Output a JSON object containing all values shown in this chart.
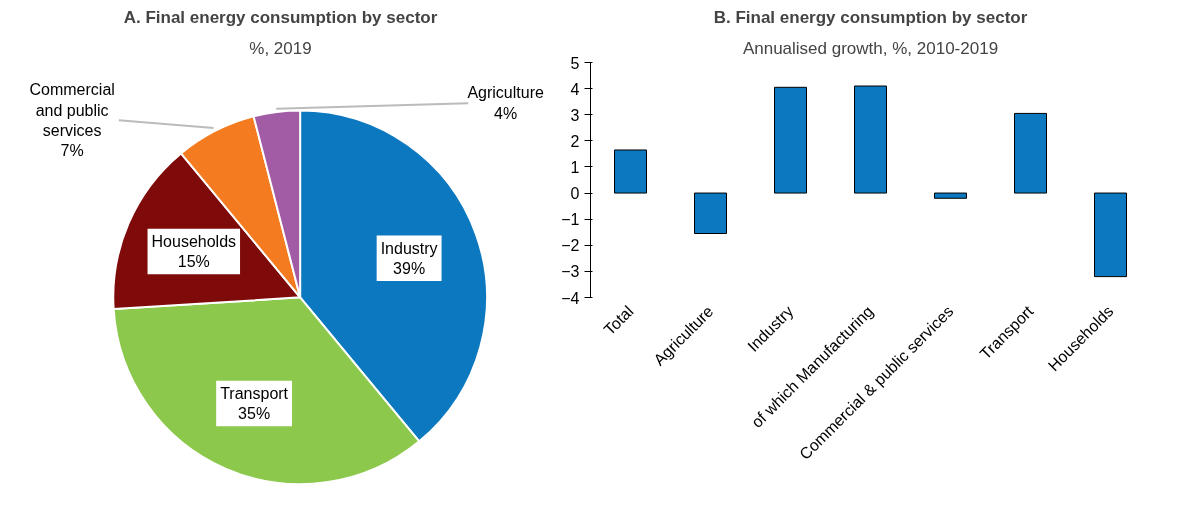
{
  "chart_data": [
    {
      "type": "pie",
      "title": "A. Final energy consumption by sector",
      "subtitle": "%, 2019",
      "categories": [
        "Industry",
        "Transport",
        "Households",
        "Commercial and public services",
        "Agriculture"
      ],
      "values": [
        39,
        35,
        15,
        7,
        4
      ],
      "value_labels": [
        "39%",
        "35%",
        "15%",
        "7%",
        "4%"
      ],
      "colors": [
        "#0b78c0",
        "#8cc84b",
        "#7f0a0a",
        "#f47b20",
        "#a25ca6"
      ]
    },
    {
      "type": "bar",
      "title": "B. Final energy consumption by sector",
      "subtitle": "Annualised growth, %, 2010-2019",
      "categories": [
        "Total",
        "Agriculture",
        "Industry",
        "of which Manufacturing",
        "Commercial & public services",
        "Transport",
        "Households"
      ],
      "values": [
        1.65,
        -1.55,
        4.05,
        4.1,
        -0.2,
        3.05,
        -3.2
      ],
      "color": "#0b78c0",
      "ylim": [
        -4,
        5
      ],
      "yticks": [
        -4,
        -3,
        -2,
        -1,
        0,
        1,
        2,
        3,
        4,
        5
      ],
      "grid": false
    }
  ]
}
